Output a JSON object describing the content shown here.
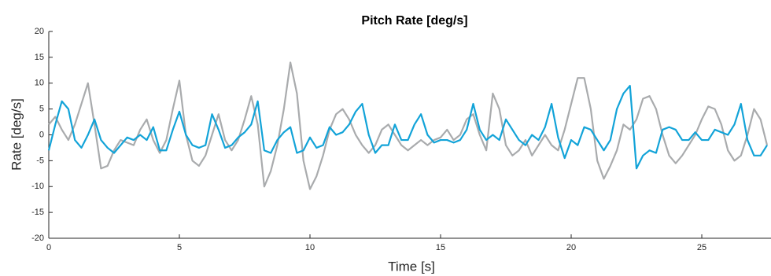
{
  "chart_data": {
    "type": "line",
    "title": "Pitch Rate [deg/s]",
    "x_label": "Time [s]",
    "y_label": "Rate [deg/s]",
    "x": [
      0,
      0.25,
      0.5,
      0.75,
      1,
      1.25,
      1.5,
      1.75,
      2,
      2.25,
      2.5,
      2.75,
      3,
      3.25,
      3.5,
      3.75,
      4,
      4.25,
      4.5,
      4.75,
      5,
      5.25,
      5.5,
      5.75,
      6,
      6.25,
      6.5,
      6.75,
      7,
      7.25,
      7.5,
      7.75,
      8,
      8.25,
      8.5,
      8.75,
      9,
      9.25,
      9.5,
      9.75,
      10,
      10.25,
      10.5,
      10.75,
      11,
      11.25,
      11.5,
      11.75,
      12,
      12.25,
      12.5,
      12.75,
      13,
      13.25,
      13.5,
      13.75,
      14,
      14.25,
      14.5,
      14.75,
      15,
      15.25,
      15.5,
      15.75,
      16,
      16.25,
      16.5,
      16.75,
      17,
      17.25,
      17.5,
      17.75,
      18,
      18.25,
      18.5,
      18.75,
      19,
      19.25,
      19.5,
      19.75,
      20,
      20.25,
      20.5,
      20.75,
      21,
      21.25,
      21.5,
      21.75,
      22,
      22.25,
      22.5,
      22.75,
      23,
      23.25,
      23.5,
      23.75,
      24,
      24.25,
      24.5,
      24.75,
      25,
      25.25,
      25.5,
      25.75,
      26,
      26.25,
      26.5,
      26.75,
      27,
      27.25,
      27.5
    ],
    "series": [
      {
        "color": "#a9abad",
        "values": [
          2,
          3.5,
          1,
          -1,
          2,
          6,
          10,
          2,
          -6.5,
          -6,
          -3,
          -1,
          -1.5,
          -2,
          1,
          3,
          -1,
          -3.5,
          -1,
          5,
          10.5,
          0,
          -5,
          -6,
          -4,
          0,
          4,
          -1,
          -3,
          -1,
          3,
          7.5,
          2,
          -10,
          -7,
          -2,
          5,
          14,
          8,
          -5,
          -10.5,
          -8,
          -4,
          1,
          4,
          5,
          3,
          0,
          -2,
          -3.5,
          -2,
          1,
          2,
          0,
          -2,
          -3,
          -2,
          -1,
          -2,
          -1,
          -0.5,
          1,
          -1,
          0,
          3,
          4,
          0,
          -3,
          8,
          5,
          -2,
          -4,
          -3,
          -1,
          -4,
          -2,
          0,
          -2,
          -3,
          1,
          6,
          11,
          11,
          5,
          -5,
          -8.5,
          -6,
          -3,
          2,
          1,
          3,
          7,
          7.5,
          5,
          0,
          -4,
          -5.5,
          -4,
          -2,
          0,
          3,
          5.5,
          5,
          2,
          -3,
          -5,
          -4,
          0,
          5,
          3,
          -2
        ]
      },
      {
        "color": "#12a3d8",
        "values": [
          -3,
          2,
          6.5,
          5,
          -1,
          -2.5,
          0,
          3,
          -1,
          -2.5,
          -3.5,
          -2,
          -0.5,
          -1,
          0,
          -1,
          1.5,
          -3,
          -3,
          1,
          4.5,
          0,
          -2,
          -2.5,
          -2,
          4,
          1,
          -2.5,
          -2,
          -0.5,
          0.5,
          2,
          6.5,
          -3,
          -3.5,
          -1,
          0.5,
          1.5,
          -3.5,
          -3,
          -0.5,
          -2.5,
          -2,
          1.5,
          0,
          0.5,
          2,
          4.5,
          6,
          0,
          -3.5,
          -2,
          -2,
          2,
          -1,
          -1,
          2,
          4,
          0,
          -1.5,
          -1,
          -1,
          -1.5,
          -1,
          1,
          6,
          1,
          -1,
          0,
          -1,
          3,
          1,
          -1,
          -2,
          0,
          -1,
          1.5,
          6,
          -0.5,
          -4.5,
          -1,
          -2,
          1.5,
          1,
          -1,
          -3,
          -1,
          5,
          8,
          9.5,
          -6.5,
          -4,
          -3,
          -3.5,
          1,
          1.5,
          1,
          -1,
          -1,
          0.5,
          -1,
          -1,
          1,
          0.5,
          0,
          2,
          6,
          -1,
          -4,
          -4,
          -2
        ]
      }
    ],
    "xlim": [
      0,
      27.65
    ],
    "xticks": [
      0,
      5,
      10,
      15,
      20,
      25
    ],
    "ylim": [
      -20,
      20
    ],
    "yticks": [
      -20,
      -15,
      -10,
      -5,
      0,
      5,
      10,
      15,
      20
    ]
  }
}
